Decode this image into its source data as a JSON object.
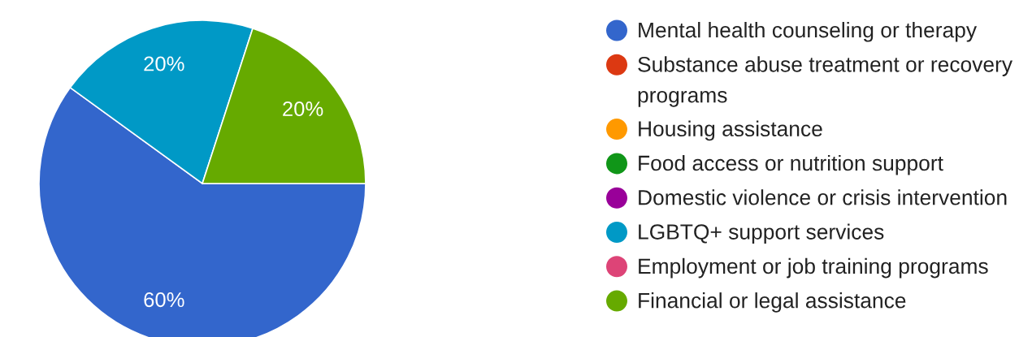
{
  "chart_data": {
    "type": "pie",
    "categories": [
      "Mental health counseling or therapy",
      "Substance abuse treatment or recovery programs",
      "Housing assistance",
      "Food access or nutrition support",
      "Domestic violence or crisis intervention",
      "LGBTQ+ support services",
      "Employment or job training programs",
      "Financial or legal assistance"
    ],
    "values": [
      60,
      0,
      0,
      0,
      0,
      20,
      0,
      20
    ],
    "colors": [
      "#3366cc",
      "#dc3912",
      "#ff9900",
      "#109618",
      "#990099",
      "#0099c6",
      "#dd4477",
      "#66aa00"
    ],
    "value_labels": [
      "60%",
      null,
      null,
      null,
      null,
      "20%",
      null,
      "20%"
    ],
    "legend": "right"
  }
}
